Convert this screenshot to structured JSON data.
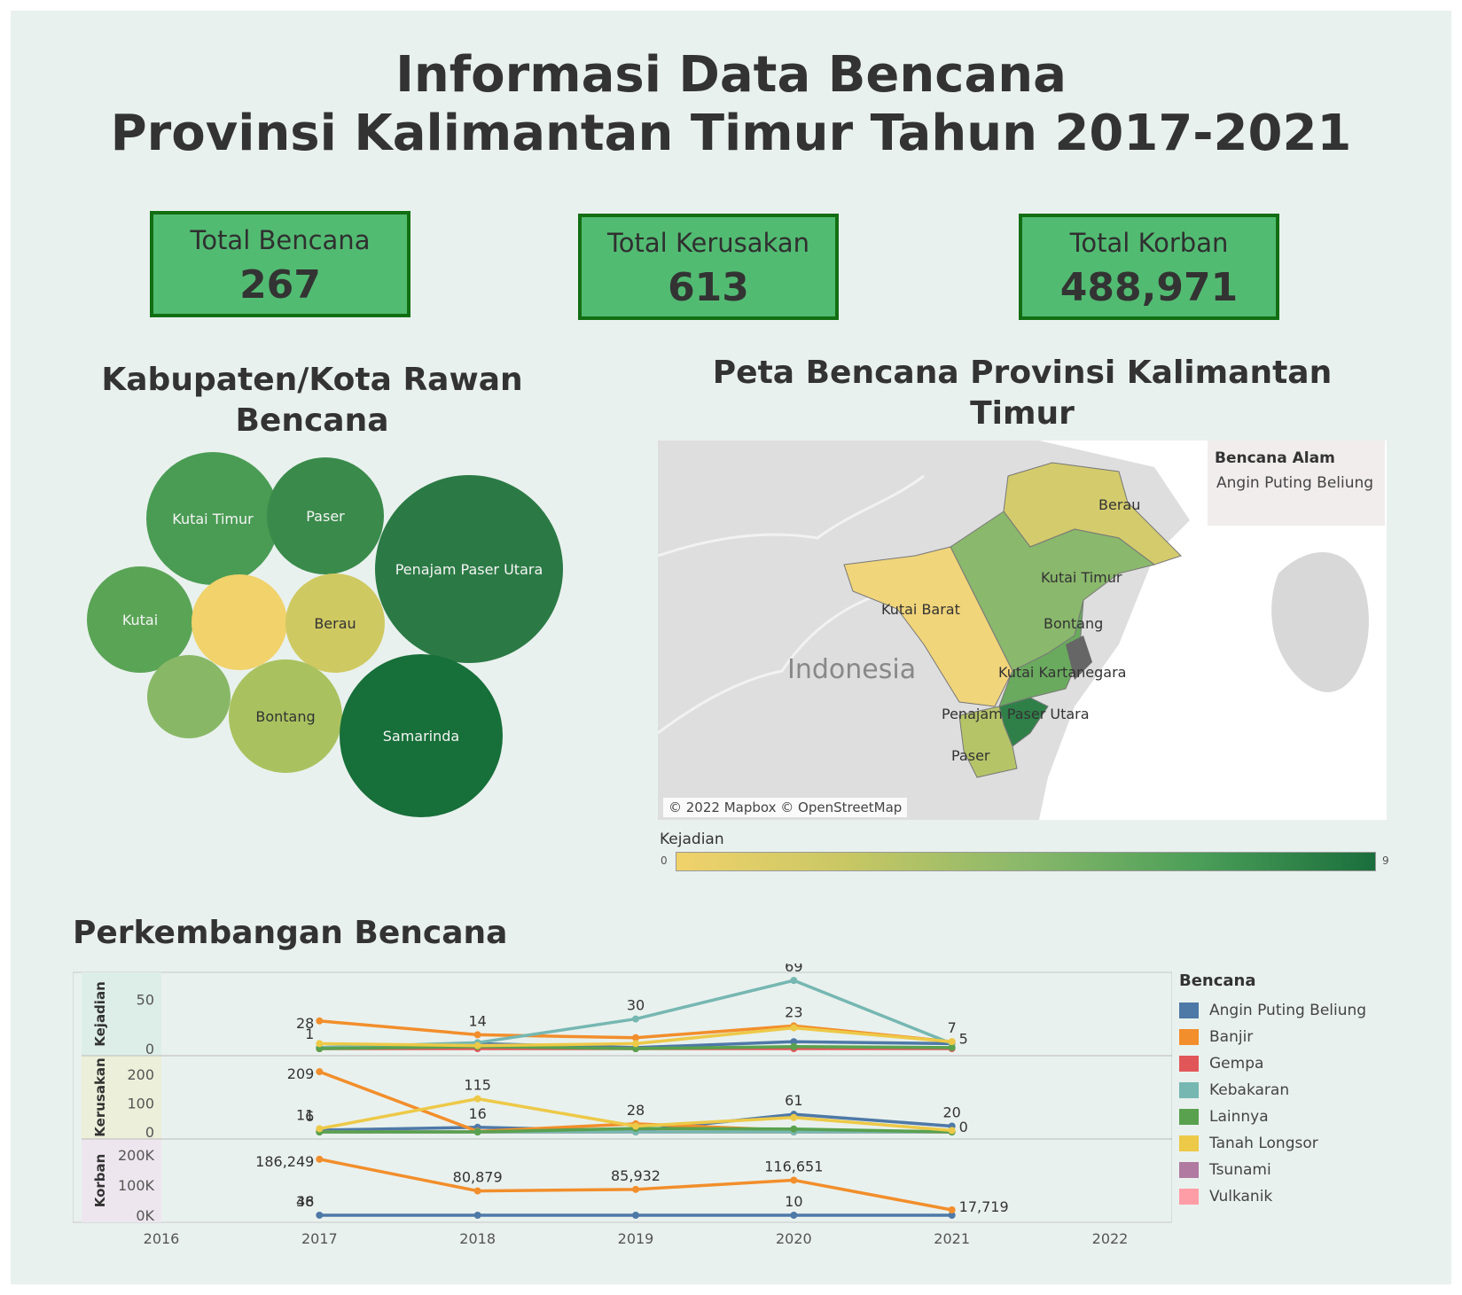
{
  "header": {
    "title_line1": "Informasi Data Bencana",
    "title_line2": "Provinsi Kalimantan Timur Tahun 2017-2021"
  },
  "kpis": [
    {
      "label": "Total Bencana",
      "value": "267"
    },
    {
      "label": "Total Kerusakan",
      "value": "613"
    },
    {
      "label": "Total Korban",
      "value": "488,971"
    }
  ],
  "bubbles": {
    "title_line1": "Kabupaten/Kota Rawan",
    "title_line2": "Bencana",
    "items": [
      {
        "label": "Kutai Timur",
        "color": "#4a9c54"
      },
      {
        "label": "Paser",
        "color": "#3a8b4b"
      },
      {
        "label": "Penajam Paser Utara",
        "color": "#2b7a45"
      },
      {
        "label": "Kutai",
        "color": "#5aa456"
      },
      {
        "label": "",
        "color": "#f1d26b"
      },
      {
        "label": "Berau",
        "color": "#cfc962"
      },
      {
        "label": "",
        "color": "#88b866"
      },
      {
        "label": "Bontang",
        "color": "#a9c25f"
      },
      {
        "label": "Samarinda",
        "color": "#176f39"
      }
    ]
  },
  "map": {
    "title_line1": "Peta Bencana Provinsi Kalimantan",
    "title_line2": "Timur",
    "country_label": "Indonesia",
    "region_labels": [
      "Berau",
      "Kutai Timur",
      "Kutai Barat",
      "Bontang",
      "Kutai Kartanegara",
      "Penajam Paser Utara",
      "Paser"
    ],
    "legend_title": "Bencana Alam",
    "legend_item": "Angin Puting Beliung",
    "attribution": "© 2022 Mapbox © OpenStreetMap",
    "scale_title": "Kejadian",
    "scale_min": "0",
    "scale_max": "9",
    "colors": {
      "low": "#f1d26b",
      "mid": "#89b86a",
      "high": "#1a6e3c"
    }
  },
  "chart_data": {
    "type": "line",
    "title": "Perkembangan Bencana",
    "x_ticks": [
      "2016",
      "2017",
      "2018",
      "2019",
      "2020",
      "2021",
      "2022"
    ],
    "x": [
      2017,
      2018,
      2019,
      2020,
      2021
    ],
    "legend_title": "Bencana",
    "series_meta": [
      {
        "name": "Angin Puting Beliung",
        "color": "#4e79a7"
      },
      {
        "name": "Banjir",
        "color": "#f28e2b"
      },
      {
        "name": "Gempa",
        "color": "#e15759"
      },
      {
        "name": "Kebakaran",
        "color": "#76b7b2"
      },
      {
        "name": "Lainnya",
        "color": "#59a14f"
      },
      {
        "name": "Tanah Longsor",
        "color": "#edc948"
      },
      {
        "name": "Tsunami",
        "color": "#b07aa1"
      },
      {
        "name": "Vulkanik",
        "color": "#ff9da7"
      }
    ],
    "panels": [
      {
        "label": "Kejadian",
        "ylim": [
          0,
          70
        ],
        "y_ticks": [
          {
            "v": 50,
            "t": "50"
          },
          {
            "v": 0,
            "t": "0"
          }
        ],
        "series": [
          {
            "name": "Angin Puting Beliung",
            "values": [
              1,
              5,
              1,
              7,
              5
            ]
          },
          {
            "name": "Banjir",
            "values": [
              28,
              14,
              11,
              23,
              7
            ]
          },
          {
            "name": "Gempa",
            "values": [
              0,
              0,
              0,
              0,
              0
            ]
          },
          {
            "name": "Kebakaran",
            "values": [
              1,
              6,
              30,
              69,
              5
            ]
          },
          {
            "name": "Lainnya",
            "values": [
              0,
              2,
              0,
              2,
              1
            ]
          },
          {
            "name": "Tanah Longsor",
            "values": [
              5,
              3,
              5,
              21,
              7
            ]
          }
        ],
        "labels": [
          {
            "x": 2017,
            "y": 28,
            "text": "28"
          },
          {
            "x": 2017,
            "y": 1,
            "text": "1"
          },
          {
            "x": 2018,
            "y": 14,
            "text": "14"
          },
          {
            "x": 2019,
            "y": 30,
            "text": "30"
          },
          {
            "x": 2020,
            "y": 69,
            "text": "69"
          },
          {
            "x": 2020,
            "y": 23,
            "text": "23"
          },
          {
            "x": 2021,
            "y": 7,
            "text": "7"
          },
          {
            "x": 2021,
            "y": 5,
            "text": "5"
          }
        ]
      },
      {
        "label": "Kerusakan",
        "ylim": [
          0,
          240
        ],
        "y_ticks": [
          {
            "v": 200,
            "t": "200"
          },
          {
            "v": 100,
            "t": "100"
          },
          {
            "v": 0,
            "t": "0"
          }
        ],
        "series": [
          {
            "name": "Angin Puting Beliung",
            "values": [
              6,
              16,
              3,
              61,
              20
            ]
          },
          {
            "name": "Banjir",
            "values": [
              209,
              2,
              28,
              5,
              0
            ]
          },
          {
            "name": "Gempa",
            "values": [
              0,
              0,
              0,
              0,
              0
            ]
          },
          {
            "name": "Kebakaran",
            "values": [
              0,
              0,
              0,
              0,
              0
            ]
          },
          {
            "name": "Lainnya",
            "values": [
              0,
              0,
              12,
              10,
              0
            ]
          },
          {
            "name": "Tanah Longsor",
            "values": [
              11,
              115,
              20,
              50,
              5
            ]
          }
        ],
        "labels": [
          {
            "x": 2017,
            "y": 209,
            "text": "209"
          },
          {
            "x": 2017,
            "y": 11,
            "text": "11"
          },
          {
            "x": 2017,
            "y": 6,
            "text": "6"
          },
          {
            "x": 2018,
            "y": 115,
            "text": "115"
          },
          {
            "x": 2018,
            "y": 16,
            "text": "16"
          },
          {
            "x": 2019,
            "y": 28,
            "text": "28"
          },
          {
            "x": 2020,
            "y": 61,
            "text": "61"
          },
          {
            "x": 2021,
            "y": 20,
            "text": "20"
          },
          {
            "x": 2021,
            "y": 0,
            "text": "0"
          }
        ]
      },
      {
        "label": "Korban",
        "ylim": [
          0,
          230000
        ],
        "y_ticks": [
          {
            "v": 200000,
            "t": "200K"
          },
          {
            "v": 100000,
            "t": "100K"
          },
          {
            "v": 0,
            "t": "0K"
          }
        ],
        "series": [
          {
            "name": "Angin Puting Beliung",
            "values": [
              48,
              36,
              0,
              10,
              0
            ]
          },
          {
            "name": "Banjir",
            "values": [
              186249,
              80879,
              85932,
              116651,
              17719
            ]
          }
        ],
        "labels": [
          {
            "x": 2017,
            "y": 186249,
            "text": "186,249"
          },
          {
            "x": 2017,
            "y": 48,
            "text": "48"
          },
          {
            "x": 2017,
            "y": 36,
            "text": "36"
          },
          {
            "x": 2018,
            "y": 80879,
            "text": "80,879"
          },
          {
            "x": 2019,
            "y": 85932,
            "text": "85,932"
          },
          {
            "x": 2020,
            "y": 116651,
            "text": "116,651"
          },
          {
            "x": 2020,
            "y": 10,
            "text": "10"
          },
          {
            "x": 2021,
            "y": 17719,
            "text": "17,719"
          }
        ]
      }
    ]
  }
}
